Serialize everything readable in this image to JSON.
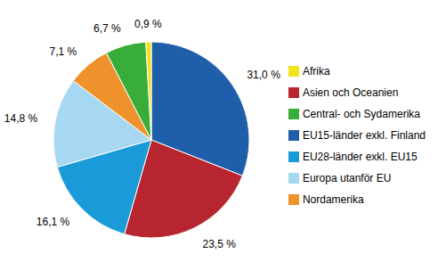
{
  "chart_data": {
    "type": "pie",
    "categories": [
      "EU15-länder exkl. Finland",
      "Asien och Oceanien",
      "EU28-länder exkl. EU15",
      "Europa utanför EU",
      "Nordamerika",
      "Central- och Sydamerika",
      "Afrika"
    ],
    "values": [
      31.0,
      23.5,
      16.1,
      14.8,
      7.1,
      6.7,
      0.9
    ],
    "value_labels": [
      "31,0 %",
      "23,5 %",
      "16,1 %",
      "14,8 %",
      "7,1 %",
      "6,7 %",
      "0,9 %"
    ],
    "colors": [
      "#1f5faa",
      "#b7262e",
      "#1b9ad9",
      "#a6d8f2",
      "#f0922b",
      "#38ad3a",
      "#f2e21a"
    ],
    "data_labels": true,
    "legend": "right"
  }
}
